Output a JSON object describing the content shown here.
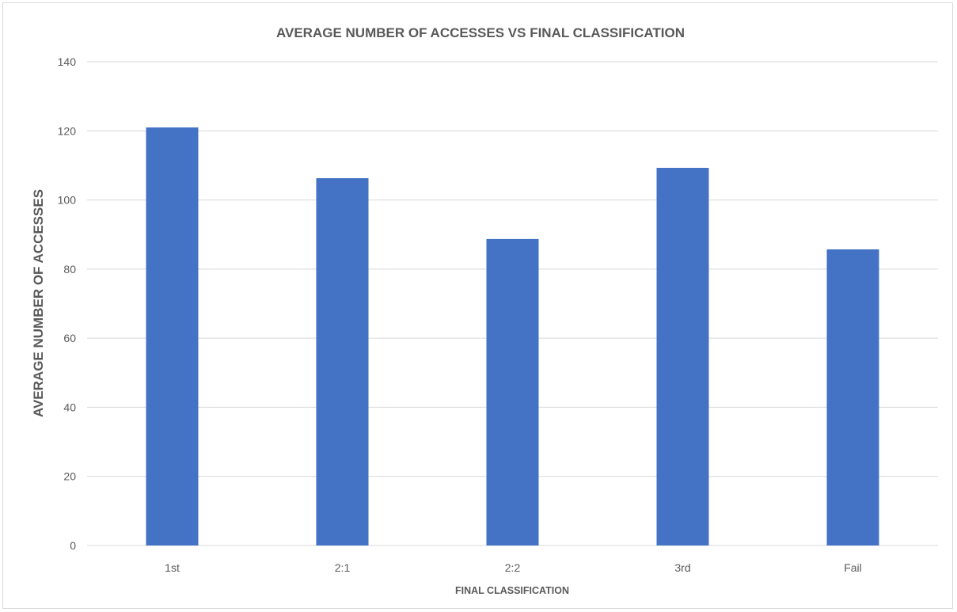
{
  "chart_data": {
    "type": "bar",
    "title": "AVERAGE NUMBER OF ACCESSES VS FINAL CLASSIFICATION",
    "xlabel": "FINAL CLASSIFICATION",
    "ylabel": "AVERAGE NUMBER OF ACCESSES",
    "categories": [
      "1st",
      "2:1",
      "2:2",
      "3rd",
      "Fail"
    ],
    "values": [
      121,
      106.3,
      88.7,
      109.3,
      85.7
    ],
    "ylim": [
      0,
      140
    ],
    "yticks": [
      "0",
      "20",
      "40",
      "60",
      "80",
      "100",
      "120",
      "140"
    ],
    "grid": true,
    "legend": "none",
    "colors": {
      "bar": "#4472c4",
      "grid": "#d9d9d9",
      "text": "#595959"
    }
  }
}
